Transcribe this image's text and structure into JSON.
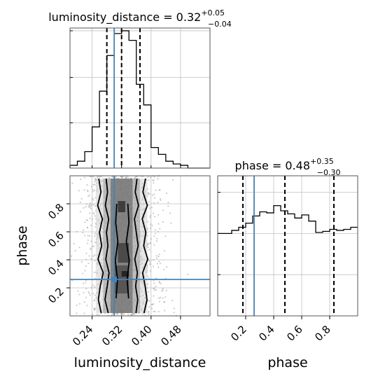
{
  "chart_data": {
    "type": "corner",
    "parameters": [
      "luminosity_distance",
      "phase"
    ],
    "truths": {
      "luminosity_distance": 0.3,
      "phase": 0.26
    },
    "panels": [
      {
        "id": "luminosity_distance_hist",
        "type": "histogram",
        "title": {
          "base": "luminosity_distance = 0.32",
          "sup": "+0.05",
          "sub": "−0.04"
        },
        "xlim": [
          0.18,
          0.56
        ],
        "bins_x": [
          0.18,
          0.2,
          0.22,
          0.24,
          0.26,
          0.28,
          0.3,
          0.32,
          0.34,
          0.36,
          0.38,
          0.4,
          0.42,
          0.44,
          0.46,
          0.48,
          0.5,
          0.52,
          0.54,
          0.56
        ],
        "counts": [
          0.02,
          0.05,
          0.12,
          0.3,
          0.56,
          0.82,
          0.98,
          1.0,
          0.93,
          0.61,
          0.46,
          0.15,
          0.1,
          0.05,
          0.03,
          0.02,
          0.0,
          0.0,
          0.0
        ],
        "ylim": [
          0,
          1.02
        ],
        "quantiles": [
          0.28,
          0.32,
          0.37
        ],
        "truth": 0.3
      },
      {
        "id": "phase_hist",
        "type": "histogram",
        "title": {
          "base": "phase = 0.48",
          "sup": "+0.35",
          "sub": "−0.30"
        },
        "xlim": [
          0.0,
          1.0
        ],
        "bins_x": [
          0.0,
          0.05,
          0.1,
          0.15,
          0.2,
          0.25,
          0.3,
          0.35,
          0.4,
          0.45,
          0.5,
          0.55,
          0.6,
          0.65,
          0.7,
          0.75,
          0.8,
          0.85,
          0.9,
          0.95,
          1.0
        ],
        "counts": [
          0.8,
          0.8,
          0.83,
          0.86,
          0.9,
          0.97,
          1.01,
          1.0,
          1.07,
          1.02,
          0.99,
          0.95,
          0.98,
          0.92,
          0.81,
          0.82,
          0.84,
          0.83,
          0.84,
          0.86
        ],
        "ylim": [
          0,
          1.36
        ],
        "quantiles": [
          0.18,
          0.48,
          0.83
        ],
        "truth": 0.26
      },
      {
        "id": "phase_vs_luminosity_distance",
        "type": "density_2d",
        "xlabel": "luminosity_distance",
        "ylabel": "phase",
        "xlim": [
          0.18,
          0.56
        ],
        "ylim": [
          0.0,
          1.0
        ],
        "xticks": [
          "0.24",
          "0.32",
          "0.40",
          "0.48"
        ],
        "yticks": [
          "0.2",
          "0.4",
          "0.6",
          "0.8"
        ],
        "truth": {
          "x": 0.3,
          "y": 0.26
        },
        "grey_bands": [
          {
            "x0": 0.29,
            "x1": 0.35,
            "shade": "#555555"
          },
          {
            "x0": 0.27,
            "x1": 0.37,
            "shade": "#9a9a9a"
          },
          {
            "x0": 0.25,
            "x1": 0.39,
            "shade": "#d2d2d2"
          }
        ],
        "contours": [
          {
            "x_left": [
              0.278,
              0.282,
              0.276,
              0.285,
              0.279,
              0.283,
              0.277,
              0.286,
              0.281,
              0.275,
              0.284
            ],
            "x_right": [
              0.362,
              0.357,
              0.366,
              0.355,
              0.36,
              0.365,
              0.356,
              0.363,
              0.358,
              0.364,
              0.359
            ]
          },
          {
            "x_left": [
              0.258,
              0.264,
              0.255,
              0.268,
              0.26,
              0.266,
              0.256,
              0.27,
              0.262,
              0.257,
              0.265
            ],
            "x_right": [
              0.385,
              0.378,
              0.39,
              0.376,
              0.386,
              0.38,
              0.391,
              0.377,
              0.384,
              0.389,
              0.381
            ]
          }
        ],
        "inner_contour": {
          "x_left": [
            0.307,
            0.304,
            0.31,
            0.303,
            0.309,
            0.305
          ],
          "x_right": [
            0.337,
            0.34,
            0.333,
            0.341,
            0.335,
            0.339
          ]
        }
      }
    ]
  },
  "colors": {
    "truth": "#4682b4",
    "grid": "#c0c0c0",
    "hist": "#000000",
    "points": "#999999"
  }
}
